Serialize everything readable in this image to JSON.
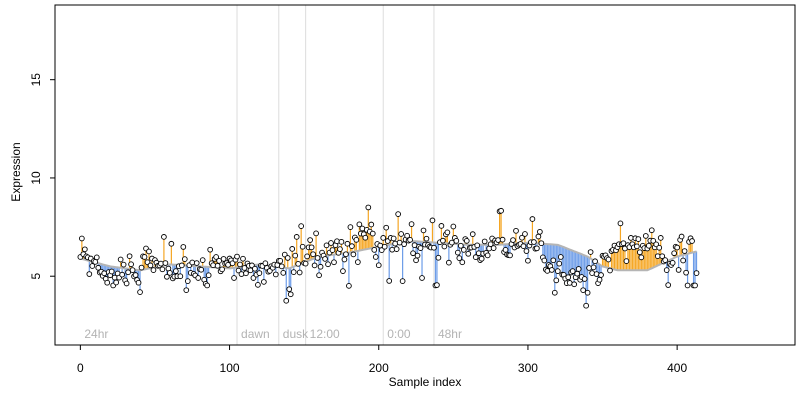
{
  "chart_data": {
    "type": "scatter",
    "xlabel": "Sample index",
    "ylabel": "Expression",
    "xlim": [
      -17,
      479
    ],
    "ylim": [
      1.5,
      18.8
    ],
    "xticks": [
      0,
      100,
      200,
      300,
      400
    ],
    "yticks": [
      5,
      10,
      15
    ],
    "grid": false,
    "legend": "none",
    "colors": {
      "above_trend": "#f5a623",
      "below_trend": "#6c9ce8",
      "trend_line": "#b5b5b5",
      "marker_outline": "#000000",
      "marker_fill": "#ffffff",
      "separator": "#dcdcdc",
      "annotation_text": "#b3b3b3"
    },
    "segments": [
      {
        "label": "24hr",
        "x": 0
      },
      {
        "label": "dawn",
        "x": 105
      },
      {
        "label": "dusk",
        "x": 133
      },
      {
        "label": "12:00",
        "x": 151
      },
      {
        "label": "0:00",
        "x": 203
      },
      {
        "label": "48hr",
        "x": 237
      }
    ],
    "separators": [
      105,
      133,
      151,
      203,
      237
    ],
    "trend": [
      [
        0,
        5.9
      ],
      [
        20,
        5.5
      ],
      [
        40,
        5.3
      ],
      [
        60,
        5.6
      ],
      [
        80,
        5.5
      ],
      [
        100,
        5.4
      ],
      [
        120,
        5.6
      ],
      [
        140,
        5.4
      ],
      [
        160,
        6.0
      ],
      [
        180,
        6.2
      ],
      [
        200,
        6.5
      ],
      [
        220,
        6.8
      ],
      [
        240,
        6.7
      ],
      [
        260,
        6.6
      ],
      [
        280,
        6.6
      ],
      [
        300,
        6.7
      ],
      [
        320,
        6.6
      ],
      [
        340,
        6.0
      ],
      [
        350,
        5.5
      ],
      [
        360,
        5.3
      ],
      [
        380,
        5.3
      ],
      [
        400,
        6.0
      ],
      [
        420,
        6.4
      ],
      [
        440,
        6.2
      ],
      [
        460,
        6.3
      ]
    ],
    "y": [
      5.98,
      6.92,
      6.12,
      6.37,
      6.01,
      5.96,
      5.11,
      5.9,
      5.52,
      5.77,
      5.73,
      5.96,
      5.43,
      5.19,
      5.23,
      5.02,
      5.15,
      4.87,
      4.67,
      5.21,
      5.05,
      5.24,
      4.53,
      4.93,
      4.68,
      5.14,
      4.93,
      5.85,
      5.08,
      5.59,
      4.79,
      4.63,
      5.2,
      6.02,
      5.61,
      5.31,
      4.99,
      5.06,
      4.81,
      4.67,
      4.19,
      5.44,
      6.01,
      5.98,
      6.41,
      5.71,
      6.26,
      5.55,
      5.9,
      5.31,
      5.82,
      5.69,
      5.53,
      5.55,
      5.64,
      5.35,
      7.0,
      5.67,
      4.97,
      5.39,
      5.17,
      6.65,
      4.89,
      4.98,
      5.26,
      5.0,
      5.51,
      5.0,
      5.55,
      6.49,
      5.87,
      4.29,
      4.75,
      5.56,
      5.17,
      5.7,
      5.12,
      5.04,
      5.67,
      4.91,
      5.36,
      5.33,
      5.82,
      4.82,
      4.61,
      4.53,
      5.05,
      6.35,
      5.66,
      5.56,
      5.88,
      5.98,
      5.53,
      5.78,
      5.25,
      5.35,
      5.88,
      5.64,
      5.67,
      5.58,
      5.9,
      5.81,
      5.66,
      4.91,
      5.84,
      6.0,
      5.29,
      5.6,
      5.11,
      5.89,
      5.42,
      5.15,
      5.65,
      5.53,
      5.3,
      5.55,
      4.91,
      5.38,
      5.08,
      4.56,
      5.16,
      5.54,
      5.52,
      4.71,
      5.66,
      5.42,
      5.23,
      5.27,
      5.51,
      5.43,
      5.59,
      5.09,
      5.57,
      5.78,
      5.78,
      5.5,
      5.17,
      6.1,
      3.75,
      5.93,
      4.34,
      4.08,
      6.39,
      5.21,
      6.05,
      7.0,
      5.63,
      5.19,
      7.55,
      6.5,
      5.67,
      5.64,
      6.01,
      6.47,
      6.84,
      6.47,
      6.12,
      5.55,
      7.18,
      5.93,
      5.05,
      5.48,
      6.2,
      6.05,
      5.88,
      6.57,
      5.61,
      6.2,
      6.69,
      6.33,
      5.71,
      6.58,
      6.78,
      6.19,
      6.38,
      6.75,
      5.26,
      5.85,
      6.12,
      6.65,
      4.51,
      7.5,
      6.53,
      6.11,
      6.97,
      6.85,
      5.72,
      7.64,
      7.17,
      7.43,
      7.14,
      6.96,
      7.36,
      8.5,
      7.27,
      7.63,
      7.17,
      6.34,
      5.98,
      6.64,
      5.56,
      6.56,
      6.33,
      6.95,
      6.5,
      7.47,
      6.79,
      4.76,
      6.95,
      6.35,
      6.92,
      6.66,
      6.38,
      8.16,
      6.71,
      7.15,
      4.75,
      6.63,
      6.87,
      7.06,
      6.81,
      6.85,
      7.65,
      6.17,
      6.58,
      5.81,
      6.05,
      6.5,
      6.43,
      4.91,
      7.33,
      6.61,
      6.91,
      6.59,
      6.5,
      6.46,
      7.84,
      6.45,
      4.53,
      4.55,
      5.94,
      6.73,
      7.56,
      6.81,
      6.51,
      7.13,
      7.23,
      5.69,
      6.6,
      6.71,
      7.53,
      6.95,
      6.8,
      6.2,
      5.92,
      6.55,
      5.71,
      6.34,
      6.89,
      6.8,
      6.14,
      6.44,
      6.46,
      7.14,
      6.49,
      5.97,
      6.57,
      6.17,
      5.82,
      5.89,
      6.15,
      6.77,
      6.19,
      6.06,
      6.41,
      6.63,
      6.92,
      6.43,
      6.82,
      6.72,
      6.84,
      8.3,
      8.33,
      6.86,
      6.23,
      6.34,
      6.1,
      6.07,
      6.06,
      6.64,
      6.84,
      6.46,
      7.31,
      6.54,
      6.6,
      6.64,
      6.96,
      6.53,
      7.15,
      6.28,
      5.79,
      6.56,
      6.73,
      7.91,
      6.74,
      6.4,
      6.42,
      7.02,
      7.26,
      6.68,
      5.96,
      5.8,
      5.34,
      5.27,
      5.57,
      5.51,
      5.32,
      5.81,
      4.16,
      4.79,
      5.26,
      5.64,
      5.98,
      5.08,
      5.07,
      4.88,
      4.65,
      4.95,
      4.66,
      5.19,
      5.26,
      4.59,
      4.95,
      5.13,
      5.37,
      4.82,
      4.96,
      4.29,
      4.86,
      3.5,
      4.16,
      5.42,
      6.23,
      5.16,
      5.45,
      5.76,
      5.11,
      4.65,
      4.82,
      5.06,
      6.04,
      5.99,
      6.06,
      5.92,
      5.85,
      5.29,
      6.28,
      6.34,
      6.56,
      6.32,
      6.48,
      6.63,
      7.69,
      6.63,
      6.68,
      6.41,
      5.77,
      6.58,
      6.48,
      6.95,
      6.63,
      6.47,
      6.93,
      6.52,
      6.89,
      6.22,
      5.96,
      6.55,
      6.43,
      7.05,
      6.41,
      6.55,
      6.81,
      7.34,
      6.8,
      6.47,
      6.62,
      6.02,
      6.45,
      6.95,
      6.02,
      5.75,
      5.82,
      5.31,
      4.55,
      5.63,
      5.57,
      5.68,
      6.17,
      6.5,
      6.46,
      5.32,
      6.85,
      7.02,
      5.8,
      6.28,
      5.18,
      4.53,
      6.75,
      6.93,
      6.79,
      4.53,
      4.53,
      5.16
    ]
  }
}
